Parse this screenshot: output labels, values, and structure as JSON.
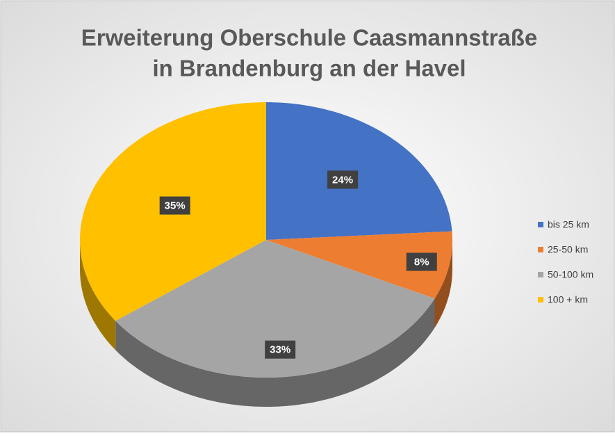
{
  "chart_data": {
    "type": "pie",
    "title": [
      "Erweiterung Oberschule Caasmannstraße",
      "in Brandenburg an der Havel"
    ],
    "categories": [
      "bis 25 km",
      "25-50 km",
      "50-100 km",
      "100 + km"
    ],
    "values": [
      24,
      8,
      33,
      35
    ],
    "value_labels": [
      "24%",
      "8%",
      "33%",
      "35%"
    ],
    "colors": [
      "#4472c4",
      "#ed7d31",
      "#a5a5a5",
      "#ffc000"
    ],
    "legend": "right"
  }
}
